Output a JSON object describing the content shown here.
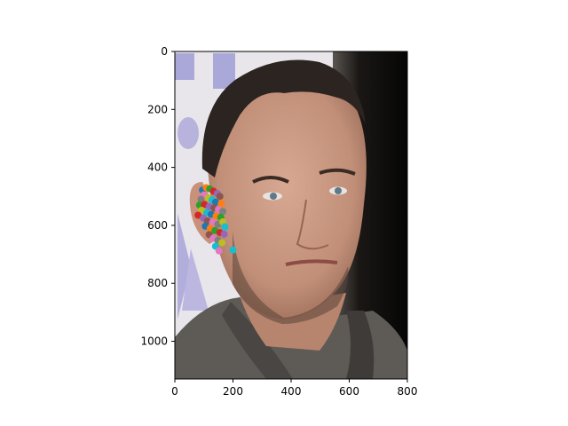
{
  "chart_data": {
    "type": "scatter",
    "title": "",
    "xlabel": "",
    "ylabel": "",
    "xlim": [
      0,
      800
    ],
    "ylim": [
      1130,
      0
    ],
    "y_inverted": true,
    "grid": false,
    "legend": "none",
    "background": "photograph: close-up portrait of a man with short dark hair and stubble, dark grey jacket; pale lavender lettering shapes at left edge, black backdrop at right",
    "x_ticks": [
      0,
      200,
      400,
      600,
      800
    ],
    "y_ticks": [
      0,
      200,
      400,
      600,
      800,
      1000
    ],
    "tick_labels_x": [
      "0",
      "200",
      "400",
      "600",
      "800"
    ],
    "tick_labels_y": [
      "0",
      "200",
      "400",
      "600",
      "800",
      "1000"
    ],
    "points": [
      {
        "x": 95,
        "y": 478,
        "color": "#1f77b4"
      },
      {
        "x": 108,
        "y": 470,
        "color": "#ff7f0e"
      },
      {
        "x": 120,
        "y": 474,
        "color": "#2ca02c"
      },
      {
        "x": 133,
        "y": 482,
        "color": "#d62728"
      },
      {
        "x": 146,
        "y": 490,
        "color": "#9467bd"
      },
      {
        "x": 155,
        "y": 500,
        "color": "#8c564b"
      },
      {
        "x": 100,
        "y": 495,
        "color": "#e377c2"
      },
      {
        "x": 90,
        "y": 510,
        "color": "#7f7f7f"
      },
      {
        "x": 115,
        "y": 505,
        "color": "#bcbd22"
      },
      {
        "x": 128,
        "y": 512,
        "color": "#17becf"
      },
      {
        "x": 140,
        "y": 520,
        "color": "#1f77b4"
      },
      {
        "x": 160,
        "y": 525,
        "color": "#ff7f0e"
      },
      {
        "x": 85,
        "y": 530,
        "color": "#2ca02c"
      },
      {
        "x": 102,
        "y": 528,
        "color": "#d62728"
      },
      {
        "x": 118,
        "y": 535,
        "color": "#9467bd"
      },
      {
        "x": 135,
        "y": 540,
        "color": "#8c564b"
      },
      {
        "x": 150,
        "y": 545,
        "color": "#e377c2"
      },
      {
        "x": 165,
        "y": 552,
        "color": "#7f7f7f"
      },
      {
        "x": 92,
        "y": 548,
        "color": "#bcbd22"
      },
      {
        "x": 110,
        "y": 556,
        "color": "#17becf"
      },
      {
        "x": 125,
        "y": 562,
        "color": "#1f77b4"
      },
      {
        "x": 142,
        "y": 568,
        "color": "#ff7f0e"
      },
      {
        "x": 158,
        "y": 572,
        "color": "#2ca02c"
      },
      {
        "x": 80,
        "y": 565,
        "color": "#d62728"
      },
      {
        "x": 98,
        "y": 575,
        "color": "#9467bd"
      },
      {
        "x": 112,
        "y": 585,
        "color": "#8c564b"
      },
      {
        "x": 130,
        "y": 590,
        "color": "#e377c2"
      },
      {
        "x": 148,
        "y": 596,
        "color": "#7f7f7f"
      },
      {
        "x": 165,
        "y": 588,
        "color": "#bcbd22"
      },
      {
        "x": 172,
        "y": 605,
        "color": "#17becf"
      },
      {
        "x": 105,
        "y": 603,
        "color": "#1f77b4"
      },
      {
        "x": 122,
        "y": 610,
        "color": "#ff7f0e"
      },
      {
        "x": 138,
        "y": 618,
        "color": "#2ca02c"
      },
      {
        "x": 155,
        "y": 625,
        "color": "#d62728"
      },
      {
        "x": 170,
        "y": 630,
        "color": "#9467bd"
      },
      {
        "x": 118,
        "y": 632,
        "color": "#8c564b"
      },
      {
        "x": 132,
        "y": 645,
        "color": "#e377c2"
      },
      {
        "x": 148,
        "y": 652,
        "color": "#7f7f7f"
      },
      {
        "x": 162,
        "y": 660,
        "color": "#bcbd22"
      },
      {
        "x": 140,
        "y": 672,
        "color": "#17becf"
      },
      {
        "x": 152,
        "y": 688,
        "color": "#e377c2"
      },
      {
        "x": 200,
        "y": 685,
        "color": "#17becf"
      }
    ]
  }
}
